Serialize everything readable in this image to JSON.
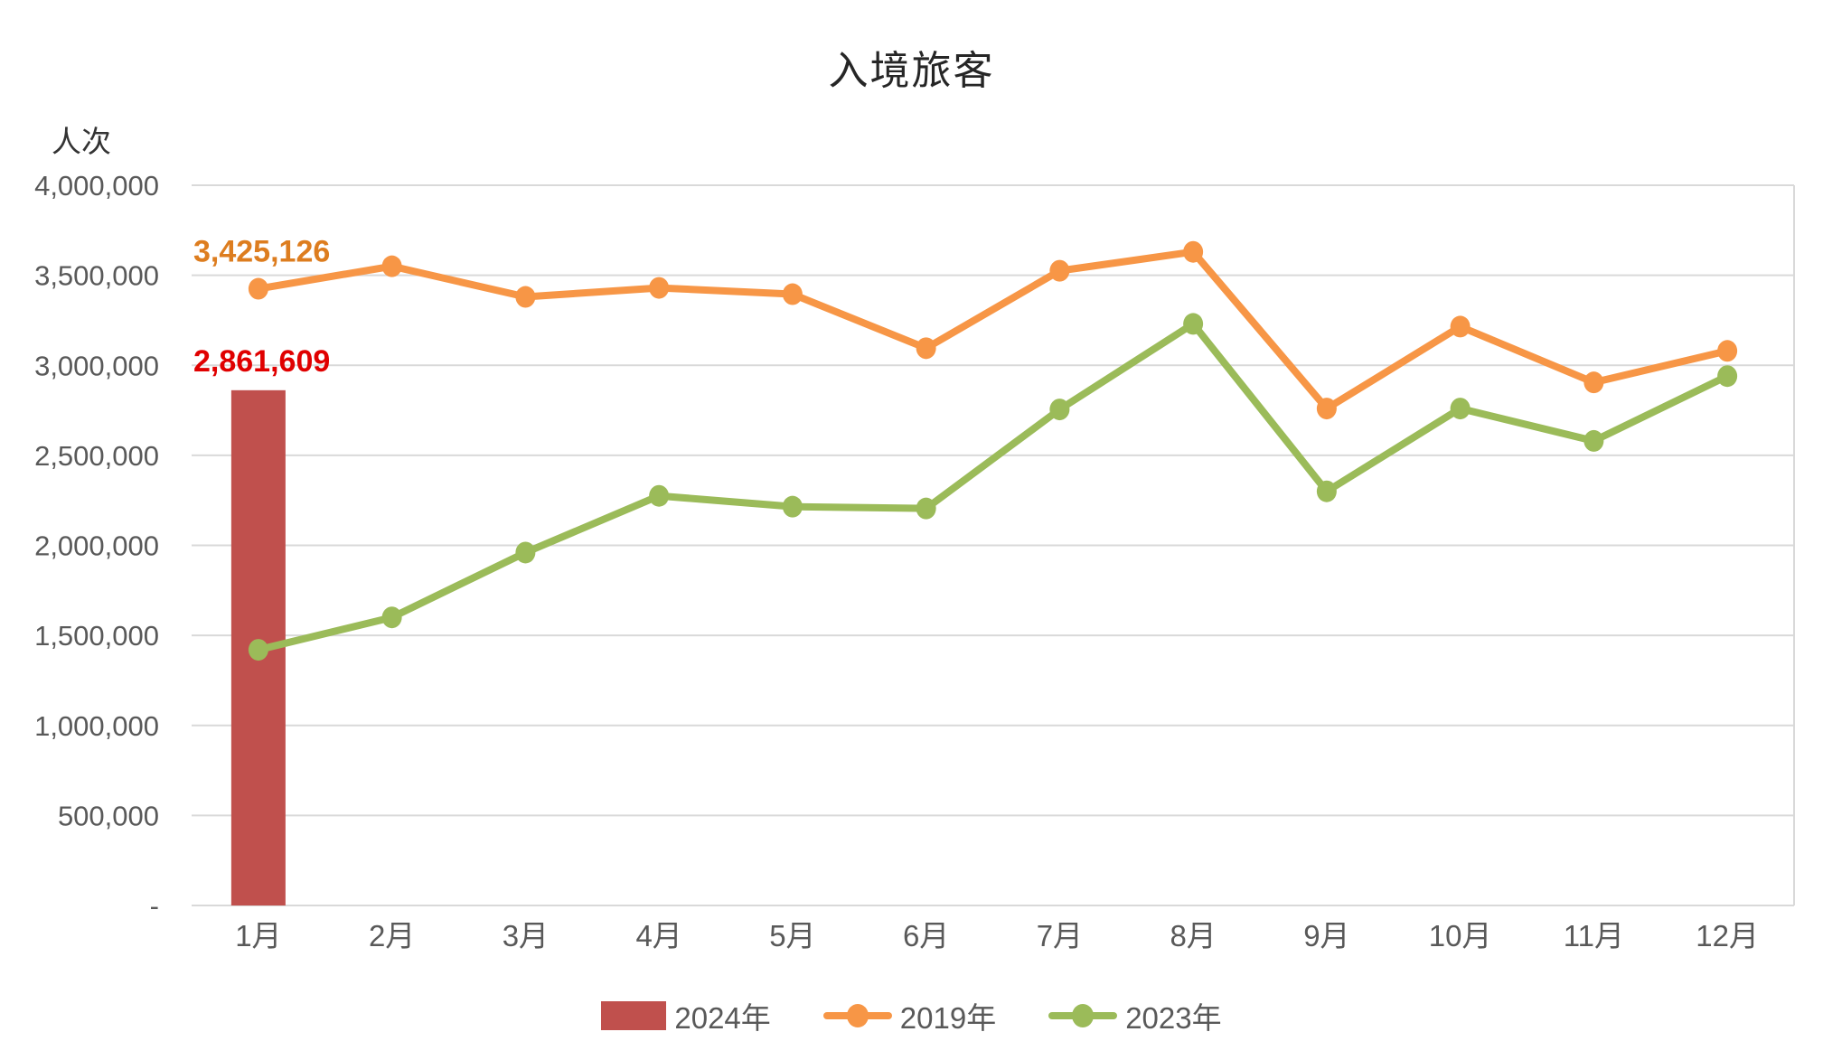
{
  "title": "入境旅客",
  "y_axis_unit": "人次",
  "colors": {
    "background": "#FFFFFF",
    "bar_2024": "#C0504D",
    "line_2019": "#F79646",
    "line_2023": "#9BBB59",
    "grid": "#D9D9D9",
    "axis_text": "#595959",
    "title_text": "#262626",
    "label_2019": "#DD7D1F",
    "label_2024": "#E00000"
  },
  "chart_data": {
    "type": "combo-bar-line",
    "title": "入境旅客",
    "ylabel": "人次",
    "xlabel": "",
    "grid": true,
    "legend_position": "bottom",
    "ylim": [
      0,
      4000000
    ],
    "categories": [
      "1月",
      "2月",
      "3月",
      "4月",
      "5月",
      "6月",
      "7月",
      "8月",
      "9月",
      "10月",
      "11月",
      "12月"
    ],
    "y_ticks": [
      {
        "value": 4000000,
        "label": "4,000,000"
      },
      {
        "value": 3500000,
        "label": "3,500,000"
      },
      {
        "value": 3000000,
        "label": "3,000,000"
      },
      {
        "value": 2500000,
        "label": "2,500,000"
      },
      {
        "value": 2000000,
        "label": "2,000,000"
      },
      {
        "value": 1500000,
        "label": "1,500,000"
      },
      {
        "value": 1000000,
        "label": "1,000,000"
      },
      {
        "value": 500000,
        "label": "500,000"
      },
      {
        "value": 0,
        "label": "-"
      }
    ],
    "series": [
      {
        "name": "2024年",
        "type": "bar",
        "color_key": "bar_2024",
        "values": [
          2861609,
          null,
          null,
          null,
          null,
          null,
          null,
          null,
          null,
          null,
          null,
          null
        ],
        "data_label": {
          "text": "2,861,609",
          "month_index": 0,
          "color_key": "label_2024"
        }
      },
      {
        "name": "2019年",
        "type": "line",
        "color_key": "line_2019",
        "values": [
          3425126,
          3550000,
          3380000,
          3430000,
          3395000,
          3095000,
          3525000,
          3630000,
          2760000,
          3215000,
          2905000,
          3080000
        ],
        "data_label": {
          "text": "3,425,126",
          "month_index": 0,
          "color_key": "label_2019"
        }
      },
      {
        "name": "2023年",
        "type": "line",
        "color_key": "line_2023",
        "values": [
          1420000,
          1600000,
          1960000,
          2275000,
          2215000,
          2205000,
          2755000,
          3230000,
          2300000,
          2760000,
          2580000,
          2940000
        ],
        "data_label": null
      }
    ]
  },
  "legend": {
    "items": [
      {
        "label": "2024年",
        "type": "bar"
      },
      {
        "label": "2019年",
        "type": "line"
      },
      {
        "label": "2023年",
        "type": "line"
      }
    ]
  }
}
